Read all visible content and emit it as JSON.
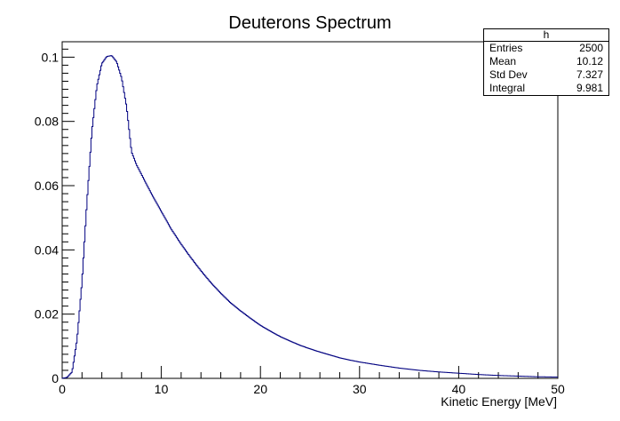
{
  "chart_data": {
    "type": "histogram",
    "title": "Deuterons Spectrum",
    "xlabel": "Kinetic Energy [MeV]",
    "ylabel": "",
    "xlim": [
      0,
      50
    ],
    "ylim": [
      0,
      0.105
    ],
    "x_ticks": [
      "0",
      "10",
      "20",
      "30",
      "40",
      "50"
    ],
    "y_ticks": [
      "0",
      "0.02",
      "0.04",
      "0.06",
      "0.08",
      "0.1"
    ],
    "grid": false,
    "line_color": "#000080",
    "peak": {
      "x": 4.9,
      "y": 0.1005
    },
    "curve": [
      [
        0.0,
        0.0
      ],
      [
        0.5,
        0.0003
      ],
      [
        1.0,
        0.002
      ],
      [
        1.5,
        0.012
      ],
      [
        2.0,
        0.03
      ],
      [
        2.5,
        0.055
      ],
      [
        3.0,
        0.077
      ],
      [
        3.5,
        0.091
      ],
      [
        4.0,
        0.098
      ],
      [
        4.5,
        0.1002
      ],
      [
        5.0,
        0.1005
      ],
      [
        5.5,
        0.0985
      ],
      [
        6.0,
        0.0935
      ],
      [
        6.5,
        0.0845
      ],
      [
        7.0,
        0.0705
      ],
      [
        7.5,
        0.0665
      ],
      [
        8.0,
        0.0635
      ],
      [
        9.0,
        0.0575
      ],
      [
        10.0,
        0.052
      ],
      [
        11.0,
        0.0465
      ],
      [
        12.0,
        0.0418
      ],
      [
        13.0,
        0.0375
      ],
      [
        14.0,
        0.0335
      ],
      [
        15.0,
        0.0298
      ],
      [
        16.0,
        0.0265
      ],
      [
        17.0,
        0.0235
      ],
      [
        18.0,
        0.021
      ],
      [
        19.0,
        0.0187
      ],
      [
        20.0,
        0.0165
      ],
      [
        21.0,
        0.0147
      ],
      [
        22.0,
        0.013
      ],
      [
        23.0,
        0.0116
      ],
      [
        24.0,
        0.0103
      ],
      [
        25.0,
        0.0092
      ],
      [
        26.0,
        0.0082
      ],
      [
        27.0,
        0.0073
      ],
      [
        28.0,
        0.0064
      ],
      [
        29.0,
        0.0057
      ],
      [
        30.0,
        0.0051
      ],
      [
        32.0,
        0.0041
      ],
      [
        34.0,
        0.0032
      ],
      [
        36.0,
        0.0025
      ],
      [
        38.0,
        0.002
      ],
      [
        40.0,
        0.0016
      ],
      [
        42.0,
        0.0012
      ],
      [
        44.0,
        0.0009
      ],
      [
        46.0,
        0.0007
      ],
      [
        48.0,
        0.0005
      ],
      [
        50.0,
        0.0004
      ]
    ]
  },
  "stats": {
    "name": "h",
    "rows": [
      {
        "label": "Entries",
        "value": "2500"
      },
      {
        "label": "Mean",
        "value": "10.12"
      },
      {
        "label": "Std Dev",
        "value": "7.327"
      },
      {
        "label": "Integral",
        "value": "9.981"
      }
    ]
  }
}
